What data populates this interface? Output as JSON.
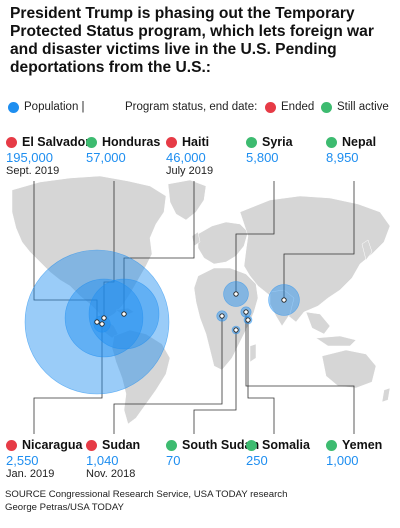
{
  "title": "President Trump is phasing out the Temporary Protected Status program, which lets foreign war and disaster victims live in the U.S. Pending deportations from the U.S.:",
  "legend": {
    "population_label": "Population |",
    "status_label": "Program status, end date:",
    "ended_label": "Ended",
    "active_label": "Still active"
  },
  "colors": {
    "population": "#1e8ef0",
    "ended": "#e63b46",
    "active": "#3dbb70",
    "land": "#d6d6d6",
    "leader_line": "#333333"
  },
  "countries_top": [
    {
      "name": "El Salvador",
      "population": "195,000",
      "status": "ended",
      "end_date": "Sept. 2019"
    },
    {
      "name": "Honduras",
      "population": "57,000",
      "status": "active",
      "end_date": ""
    },
    {
      "name": "Haiti",
      "population": "46,000",
      "status": "ended",
      "end_date": "July 2019"
    },
    {
      "name": "Syria",
      "population": "5,800",
      "status": "active",
      "end_date": ""
    },
    {
      "name": "Nepal",
      "population": "8,950",
      "status": "active",
      "end_date": ""
    }
  ],
  "countries_bottom": [
    {
      "name": "Nicaragua",
      "population": "2,550",
      "status": "ended",
      "end_date": "Jan. 2019"
    },
    {
      "name": "Sudan",
      "population": "1,040",
      "status": "ended",
      "end_date": "Nov. 2018"
    },
    {
      "name": "South Sudan",
      "population": "70",
      "status": "active",
      "end_date": ""
    },
    {
      "name": "Somalia",
      "population": "250",
      "status": "active",
      "end_date": ""
    },
    {
      "name": "Yemen",
      "population": "1,000",
      "status": "active",
      "end_date": ""
    }
  ],
  "source": {
    "line1": "SOURCE Congressional Research Service, USA TODAY research",
    "line2": "George Petras/USA TODAY"
  }
}
